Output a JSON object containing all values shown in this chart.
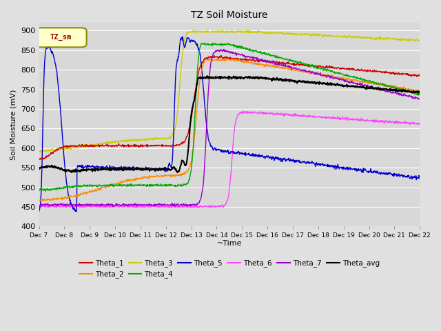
{
  "title": "TZ Soil Moisture",
  "xlabel": "~Time",
  "ylabel": "Soil Moisture (mV)",
  "ylim": [
    400,
    920
  ],
  "yticks": [
    400,
    450,
    500,
    550,
    600,
    650,
    700,
    750,
    800,
    850,
    900
  ],
  "legend_box_label": "TZ_sm",
  "xtick_labels": [
    "Dec 7",
    "Dec 8",
    "Dec 9",
    "Dec 10",
    "Dec 11",
    "Dec 12",
    "Dec 13",
    "Dec 14",
    "Dec 15",
    "Dec 16",
    "Dec 17",
    "Dec 18",
    "Dec 19",
    "Dec 20",
    "Dec 21",
    "Dec 22"
  ],
  "colors": {
    "Theta_1": "#cc0000",
    "Theta_2": "#ff8800",
    "Theta_3": "#cccc00",
    "Theta_4": "#00aa00",
    "Theta_5": "#0000cc",
    "Theta_6": "#ff44ff",
    "Theta_7": "#9900cc",
    "Theta_avg": "#000000"
  },
  "num_points": 1000
}
